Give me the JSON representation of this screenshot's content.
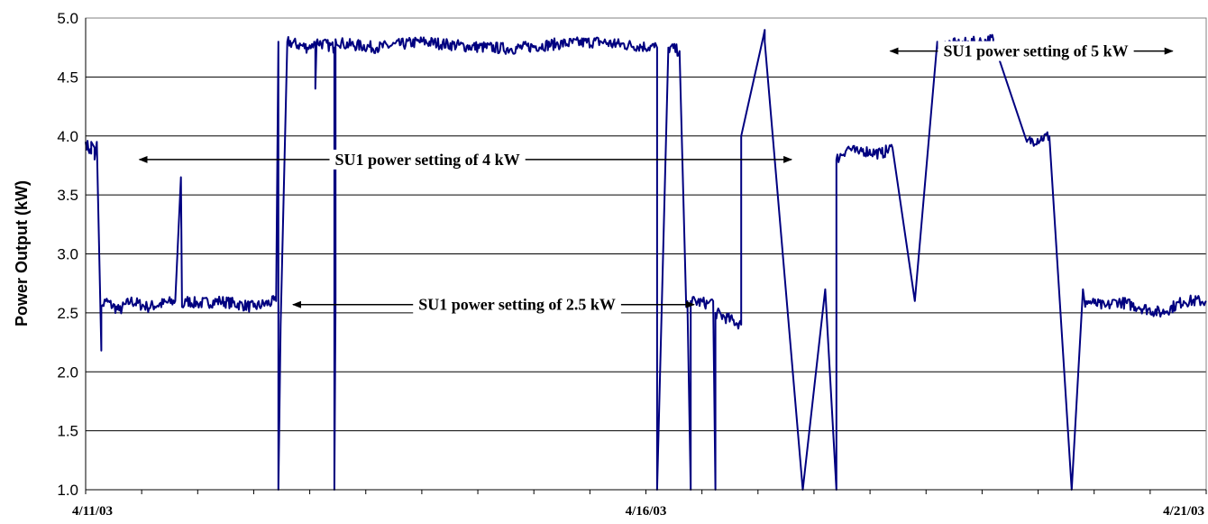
{
  "chart_data": {
    "type": "line",
    "title": "",
    "xlabel": "",
    "ylabel": "Power Output (kW)",
    "ylim": [
      1.0,
      5.0
    ],
    "yticks": [
      "1.0",
      "1.5",
      "2.0",
      "2.5",
      "3.0",
      "3.5",
      "4.0",
      "4.5",
      "5.0"
    ],
    "xlim": [
      "4/11/03",
      "4/21/03"
    ],
    "xtick_labels": [
      "4/11/03",
      "4/16/03",
      "4/21/03"
    ],
    "minor_xticks_per_day": 2,
    "grid": "horizontal",
    "line_color": "#000080",
    "series": [
      {
        "x_days": [
          0,
          0.05,
          0.05,
          0.08,
          0.08,
          0.1,
          0.14,
          0.14,
          0.18,
          0.3,
          0.4,
          0.55,
          0.8,
          0.85,
          0.86,
          0.9,
          1.0,
          1.2,
          1.5,
          1.7,
          1.72,
          1.72,
          1.74,
          1.8,
          1.98,
          2.02,
          2.03,
          2.04,
          2.05,
          2.05,
          2.06,
          2.06,
          2.22,
          2.22,
          2.23,
          2.23,
          2.3,
          2.6,
          3.0,
          3.4,
          3.8,
          4.2,
          4.6,
          4.7,
          4.7,
          4.72,
          4.72,
          5.1,
          5.1,
          5.2,
          5.3,
          5.36,
          5.37,
          5.4,
          5.4,
          5.55,
          5.6,
          5.62,
          5.62,
          5.85,
          5.85,
          6.05,
          6.06,
          6.06,
          6.4,
          6.6,
          6.7,
          6.7,
          6.8,
          6.9,
          6.92,
          6.92,
          7.1,
          7.2,
          7.4,
          7.6,
          7.65,
          7.67,
          7.7,
          7.8,
          8.0,
          8.1,
          8.1,
          8.4,
          8.6,
          8.8,
          8.9,
          8.92,
          8.93,
          9.0,
          9.1,
          9.2,
          9.4,
          9.6,
          9.8,
          10.0
        ],
        "y_kw": [
          3.95,
          3.85,
          3.95,
          3.9,
          3.8,
          3.95,
          2.18,
          2.55,
          2.6,
          2.52,
          2.6,
          2.55,
          2.6,
          3.65,
          2.55,
          2.6,
          2.58,
          2.6,
          2.55,
          2.6,
          4.8,
          1.0,
          2.4,
          4.8,
          4.75,
          4.78,
          4.75,
          4.8,
          4.78,
          4.4,
          4.78,
          4.8,
          4.75,
          1.0,
          2.6,
          4.82,
          4.78,
          4.75,
          4.8,
          4.76,
          4.74,
          4.78,
          4.8,
          4.78,
          4.75,
          4.82,
          4.78,
          4.75,
          1.0,
          4.75,
          4.72,
          2.55,
          2.6,
          1.0,
          2.6,
          2.58,
          2.6,
          1.0,
          2.5,
          2.4,
          4.0,
          4.85,
          4.9,
          4.8,
          1.0,
          2.7,
          1.0,
          3.8,
          3.9,
          3.85,
          3.9,
          3.88,
          3.85,
          3.9,
          2.6,
          4.8,
          4.75,
          4.8,
          4.78,
          4.78,
          4.8,
          4.82,
          4.8,
          3.95,
          4.0,
          1.0,
          2.7,
          2.55,
          2.6,
          2.58,
          2.55,
          2.6,
          2.55,
          2.5,
          2.6,
          2.6
        ],
        "name": ""
      }
    ],
    "annotations": [
      {
        "text": "SU1 power setting of 4 kW",
        "x_day": 3.05,
        "y": 3.8,
        "arrow_left_to_day": 0.48,
        "arrow_right_to_day": 6.3
      },
      {
        "text": "SU1 power setting of 2.5 kW",
        "x_day": 3.85,
        "y": 2.57,
        "arrow_left_to_day": 1.85,
        "arrow_right_to_day": 5.43
      },
      {
        "text": "SU1 power setting of 5 kW",
        "x_day": 8.48,
        "y": 4.72,
        "arrow_left_to_day": 7.18,
        "arrow_right_to_day": 9.7
      }
    ]
  }
}
